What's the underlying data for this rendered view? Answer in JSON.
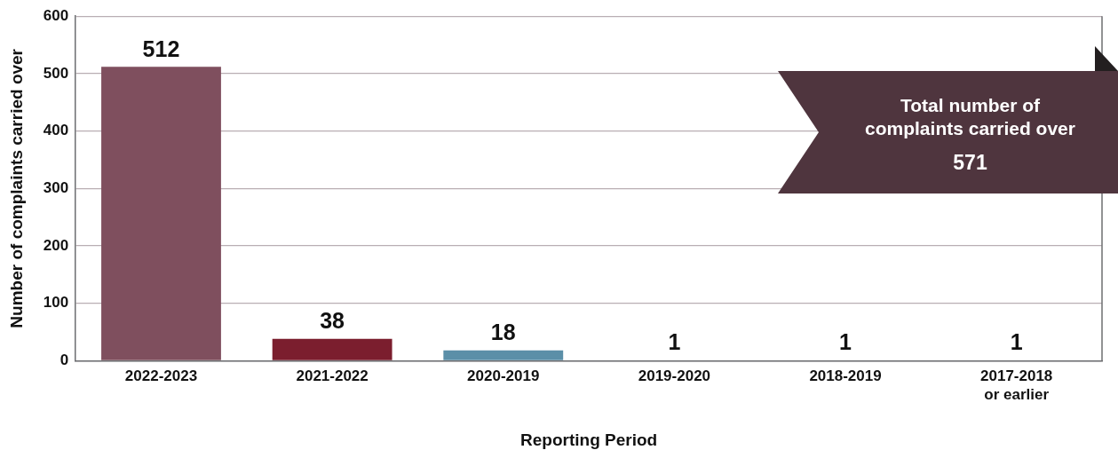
{
  "chart_data": {
    "type": "bar",
    "xlabel": "Reporting Period",
    "ylabel": "Number of complaints carried over",
    "categories": [
      "2022-2023",
      "2021-2022",
      "2020-2019",
      "2019-2020",
      "2018-2019",
      "2017-2018 or earlier"
    ],
    "values": [
      512,
      38,
      18,
      1,
      1,
      1
    ],
    "colors": [
      "#7f4f5e",
      "#7b1e2e",
      "#5b8fa8",
      "#3e8f8a",
      "#c8403f",
      "#1e3c5a"
    ],
    "ylim": [
      0,
      600
    ],
    "yticks": [
      0,
      100,
      200,
      300,
      400,
      500,
      600
    ],
    "grid": "y",
    "legend": false,
    "data_labels": true,
    "annotations": [
      "Total number of complaints carried over",
      "571"
    ]
  }
}
